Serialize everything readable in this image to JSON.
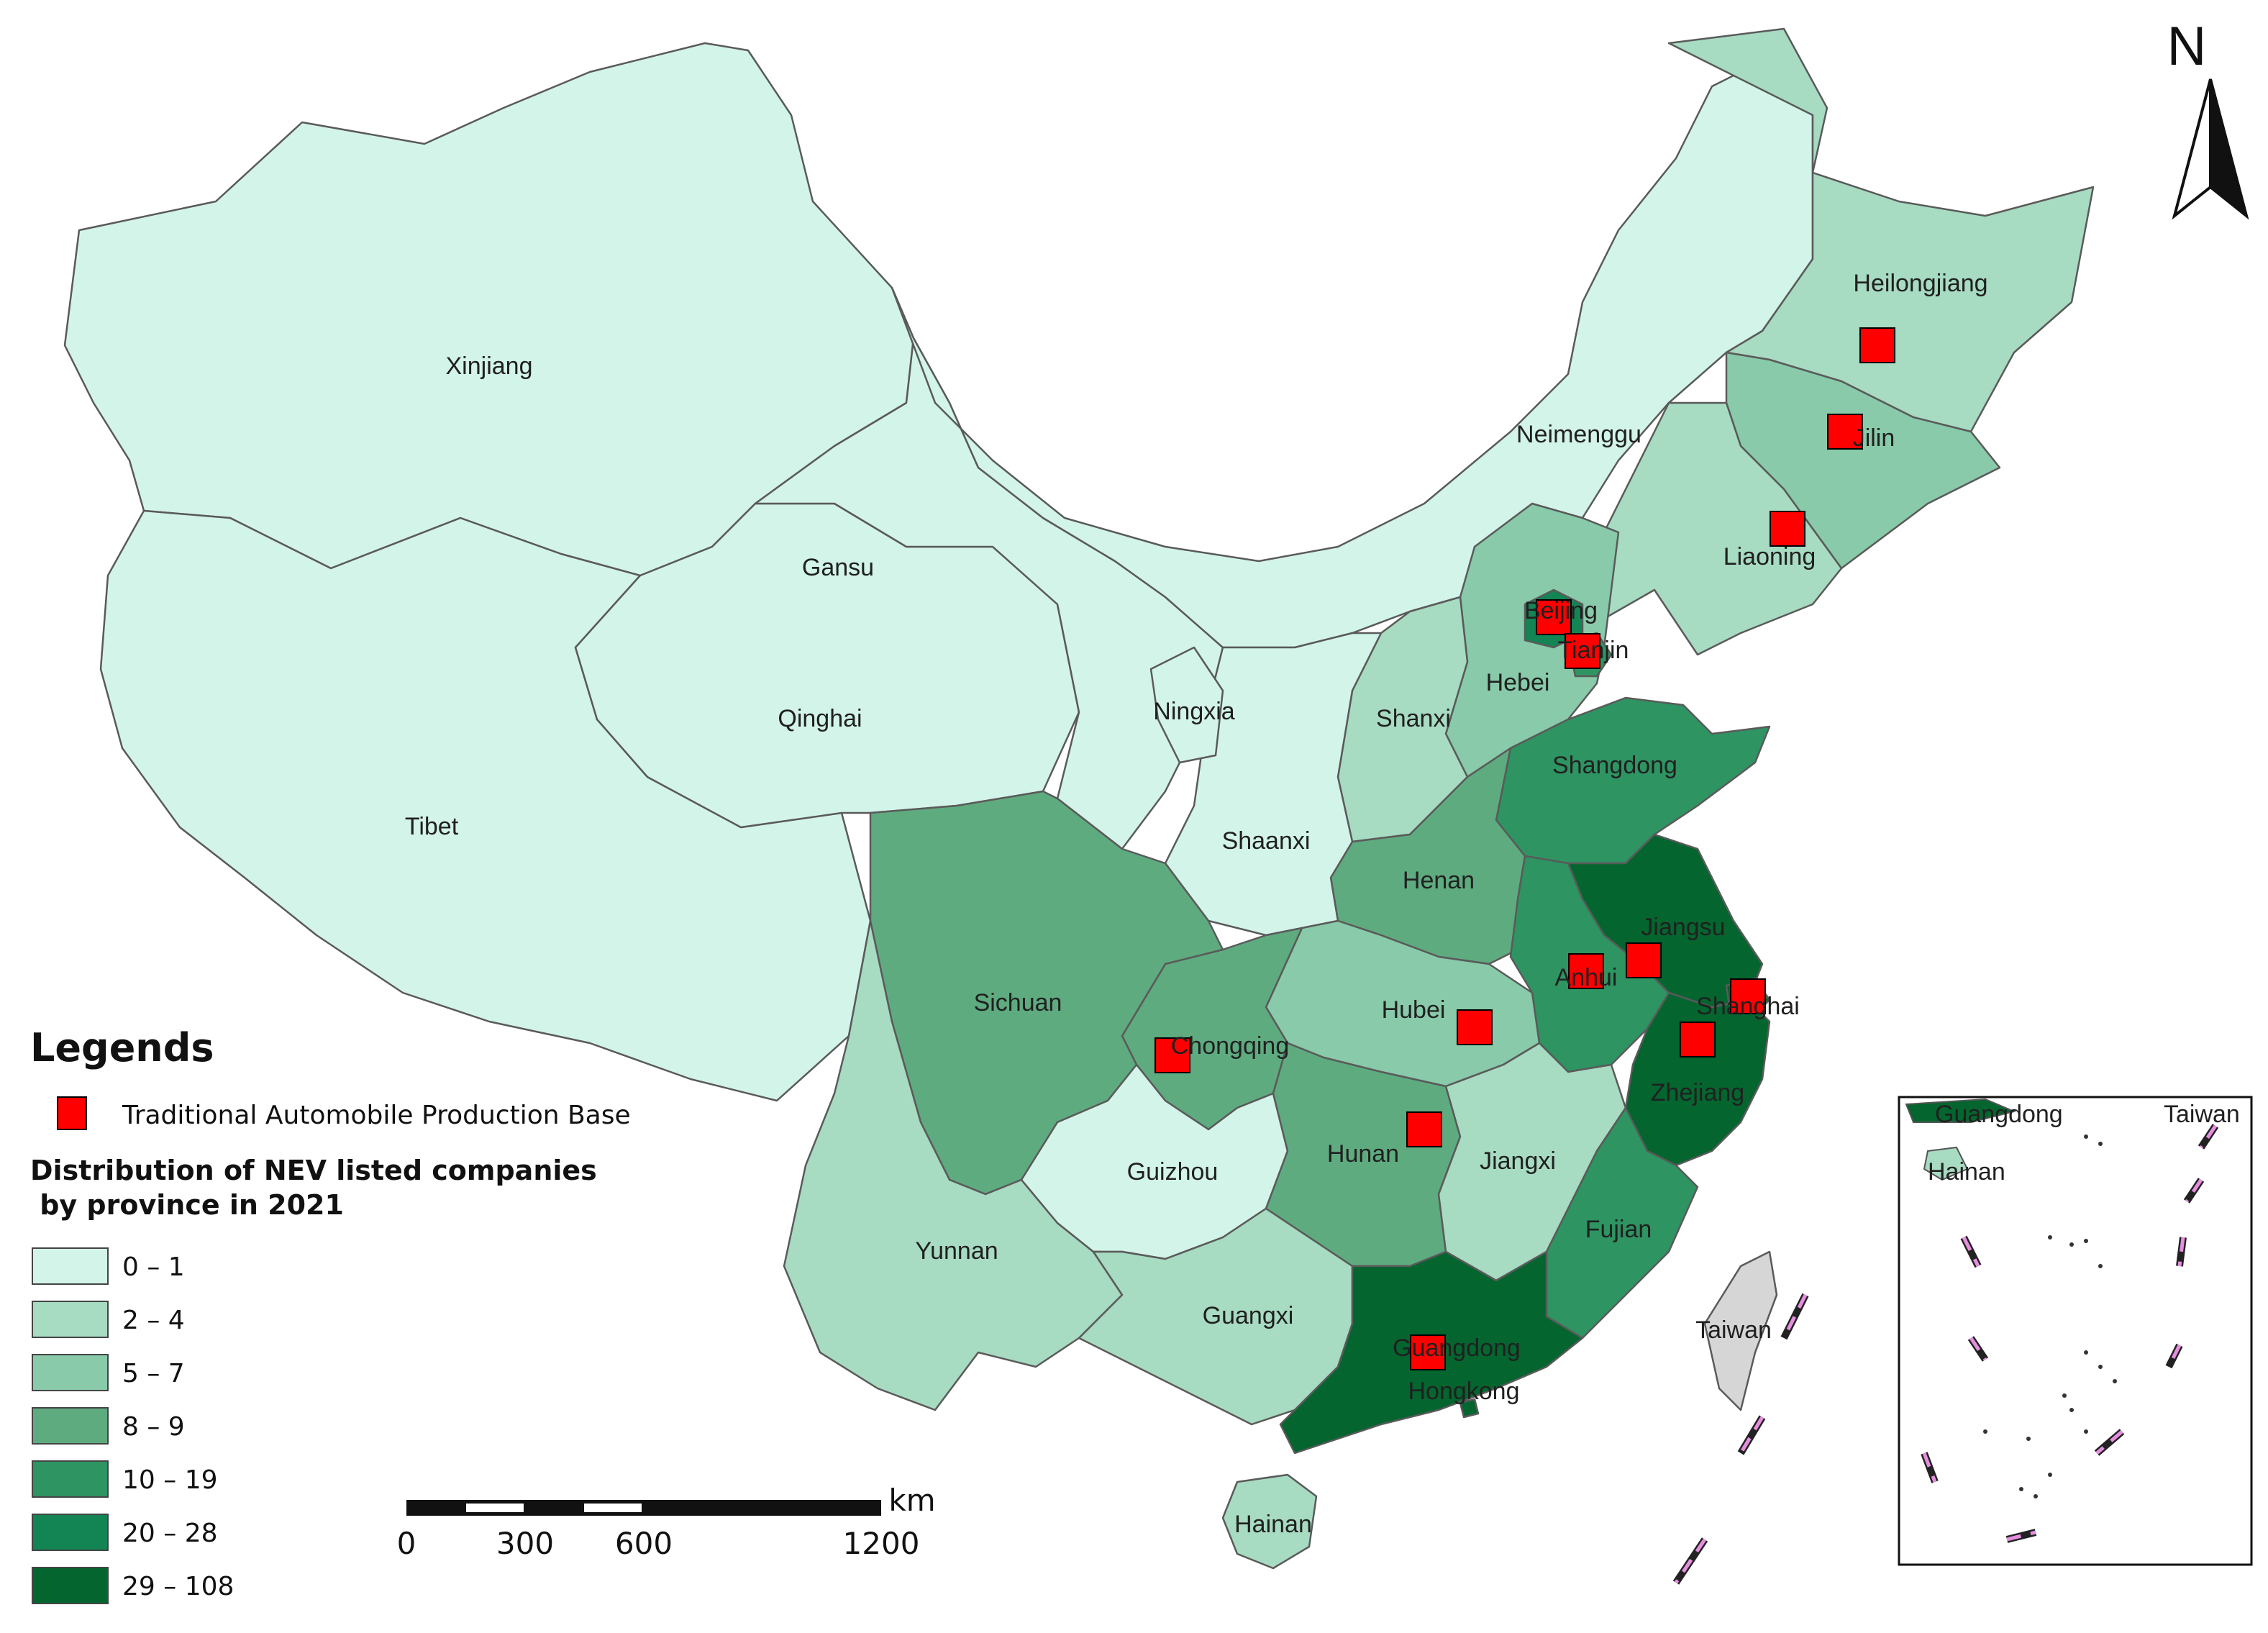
{
  "colors": {
    "class_0": "#d3f4e9",
    "class_1": "#a7dbc2",
    "class_2": "#88caa9",
    "class_3": "#5fab80",
    "class_4": "#2e9462",
    "class_5": "#138454",
    "class_6": "#04652f",
    "taiwan": "#d6d6d6",
    "base": "#ff0000"
  },
  "legend": {
    "title": "Legends",
    "marker_label": "Traditional Automobile Production Base",
    "subtitle_line1": "Distribution of NEV listed companies",
    "subtitle_line2": " by province in 2021",
    "classes": [
      "0 – 1",
      "2 – 4",
      "5 – 7",
      "8 – 9",
      "10 – 19",
      "20 – 28",
      "29 – 108"
    ]
  },
  "scale": {
    "labels": [
      "0",
      "300",
      "600",
      "1200"
    ],
    "unit": "km"
  },
  "north": "N",
  "provinces": [
    {
      "name": "Xinjiang",
      "class": 0
    },
    {
      "name": "Tibet",
      "class": 0
    },
    {
      "name": "Qinghai",
      "class": 0
    },
    {
      "name": "Gansu",
      "class": 0
    },
    {
      "name": "Neimenggu",
      "class": 0
    },
    {
      "name": "Ningxia",
      "class": 0
    },
    {
      "name": "Shaanxi",
      "class": 0
    },
    {
      "name": "Guizhou",
      "class": 0
    },
    {
      "name": "Heilongjiang",
      "class": 1
    },
    {
      "name": "Liaoning",
      "class": 1
    },
    {
      "name": "Shanxi",
      "class": 1
    },
    {
      "name": "Yunnan",
      "class": 1
    },
    {
      "name": "Guangxi",
      "class": 1
    },
    {
      "name": "Jiangxi",
      "class": 1
    },
    {
      "name": "Hainan",
      "class": 1
    },
    {
      "name": "Hubei",
      "class": 2
    },
    {
      "name": "Jilin",
      "class": 2
    },
    {
      "name": "Hebei",
      "class": 2
    },
    {
      "name": "Sichuan",
      "class": 3
    },
    {
      "name": "Henan",
      "class": 3
    },
    {
      "name": "Hunan",
      "class": 3
    },
    {
      "name": "Chongqing",
      "class": 3
    },
    {
      "name": "Shangdong",
      "class": 4
    },
    {
      "name": "Anhui",
      "class": 4
    },
    {
      "name": "Fujian",
      "class": 4
    },
    {
      "name": "Tianjin",
      "class": 4
    },
    {
      "name": "Beijing",
      "class": 5
    },
    {
      "name": "Jiangsu",
      "class": 6
    },
    {
      "name": "Zhejiang",
      "class": 6
    },
    {
      "name": "Shanghai",
      "class": 6
    },
    {
      "name": "Guangdong",
      "class": 6
    },
    {
      "name": "Hongkong",
      "class": 6
    },
    {
      "name": "Taiwan",
      "class": null
    }
  ],
  "production_bases": [
    "Heilongjiang",
    "Jilin",
    "Liaoning",
    "Beijing",
    "Tianjin",
    "Jiangsu",
    "Anhui",
    "Shanghai",
    "Zhejiang",
    "Hubei",
    "Chongqing",
    "Hunan",
    "Guangdong"
  ],
  "inset": {
    "labels": [
      "Guangdong",
      "Taiwan",
      "Hainan"
    ]
  }
}
